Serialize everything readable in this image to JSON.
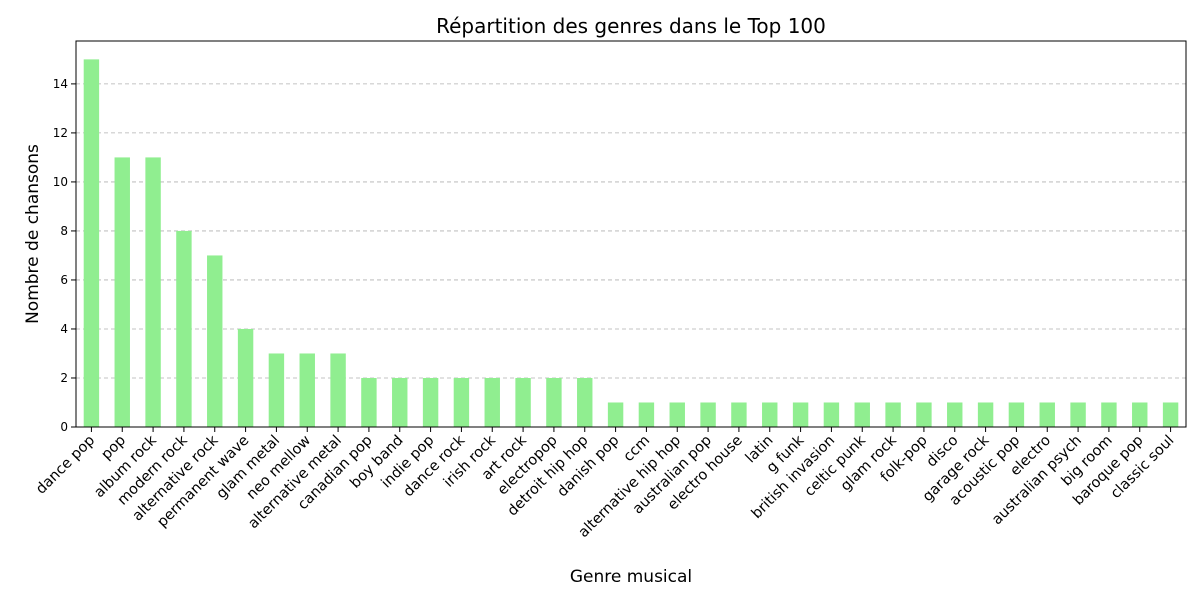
{
  "chart_data": {
    "type": "bar",
    "title": "Répartition des genres dans le Top 100",
    "xlabel": "Genre musical",
    "ylabel": "Nombre de chansons",
    "ylim": [
      0,
      15.75
    ],
    "yticks": [
      0,
      2,
      4,
      6,
      8,
      10,
      12,
      14
    ],
    "grid": "y-dashed",
    "bar_color": "#90ee90",
    "categories": [
      "dance pop",
      "pop",
      "album rock",
      "modern rock",
      "alternative rock",
      "permanent wave",
      "glam metal",
      "neo mellow",
      "alternative metal",
      "canadian pop",
      "boy band",
      "indie pop",
      "dance rock",
      "irish rock",
      "art rock",
      "electropop",
      "detroit hip hop",
      "danish pop",
      "ccm",
      "alternative hip hop",
      "australian pop",
      "electro house",
      "latin",
      "g funk",
      "british invasion",
      "celtic punk",
      "glam rock",
      "folk-pop",
      "disco",
      "garage rock",
      "acoustic pop",
      "electro",
      "australian psych",
      "big room",
      "baroque pop",
      "classic soul"
    ],
    "values": [
      15,
      11,
      11,
      8,
      7,
      4,
      3,
      3,
      3,
      2,
      2,
      2,
      2,
      2,
      2,
      2,
      2,
      1,
      1,
      1,
      1,
      1,
      1,
      1,
      1,
      1,
      1,
      1,
      1,
      1,
      1,
      1,
      1,
      1,
      1,
      1
    ]
  }
}
